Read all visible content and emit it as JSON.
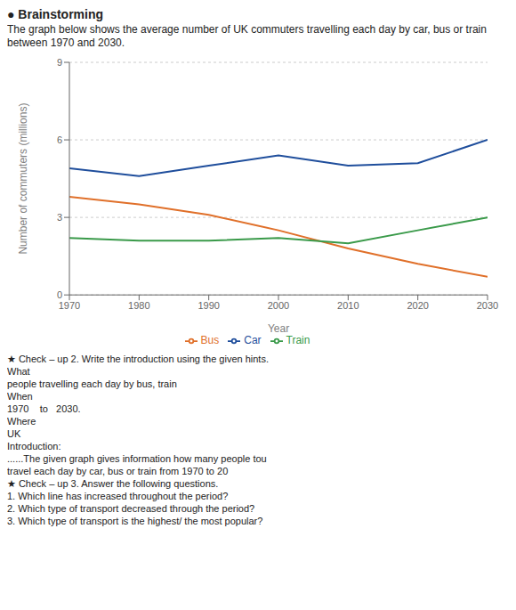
{
  "chart_data": {
    "type": "line",
    "subtitle": "● Brainstorming",
    "title": "The graph below shows the average number of UK commuters travelling each day by car, bus or train between 1970 and 2030.",
    "xlabel": "Year",
    "ylabel": "Number of commuters (millions)",
    "x": [
      1970,
      1980,
      1990,
      2000,
      2010,
      2020,
      2030
    ],
    "series": [
      {
        "name": "Car",
        "color": "#1f4e9c",
        "values": [
          4.9,
          4.6,
          5.0,
          5.4,
          5.0,
          5.1,
          6.0
        ]
      },
      {
        "name": "Bus",
        "color": "#e0702a",
        "values": [
          3.8,
          3.5,
          3.1,
          2.5,
          1.8,
          1.2,
          0.7
        ]
      },
      {
        "name": "Train",
        "color": "#3a9a4a",
        "values": [
          2.2,
          2.1,
          2.1,
          2.2,
          2.0,
          2.5,
          3.0
        ]
      }
    ],
    "xlim": [
      1970,
      2030
    ],
    "xticks": [
      1970,
      1980,
      1990,
      2000,
      2010,
      2020,
      2030
    ],
    "ylim": [
      0,
      9
    ],
    "yticks": [
      0,
      3,
      6,
      9
    ],
    "grid": true,
    "legend": "bottom",
    "annotations": [
      "★ Check – up 2. Write the introduction using the given hints.",
      "What",
      "people travelling each day by bus, train",
      "When",
      "1970    to   2030.",
      "Where",
      "UK",
      "Introduction:",
      "......The given graph gives information how many people tou",
      "travel each day by car, bus or train from 1970 to 20",
      "★ Check – up 3. Answer the following questions.",
      "1. Which line has increased throughout the period?",
      "2. Which type of transport decreased through the period?",
      "3. Which type of transport is the highest/ the most popular?"
    ]
  }
}
